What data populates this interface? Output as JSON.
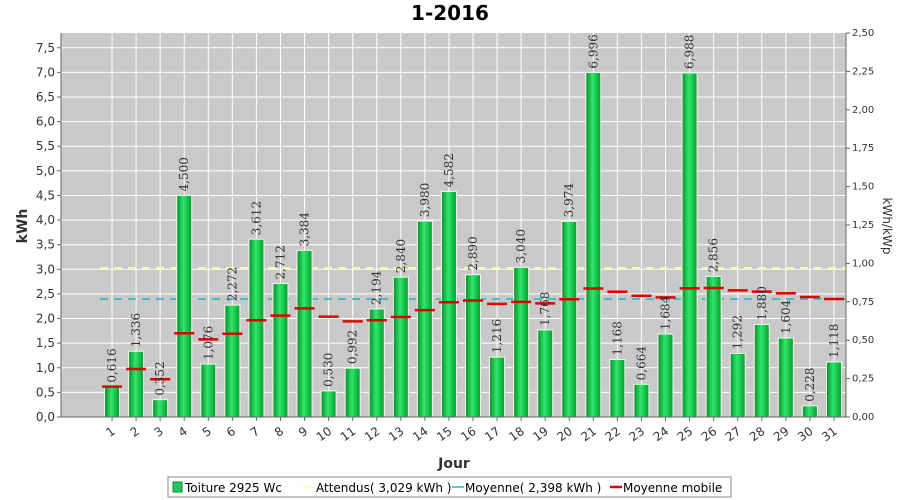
{
  "chart_data": {
    "type": "bar",
    "title": "1-2016",
    "xlabel": "Jour",
    "ylabel": "kWh",
    "y2label": "kWh/kWp",
    "ylim": [
      0,
      7.8
    ],
    "y2lim": [
      0,
      2.5
    ],
    "yticks": [
      "0,0",
      "0,5",
      "1,0",
      "1,5",
      "2,0",
      "2,5",
      "3,0",
      "3,5",
      "4,0",
      "4,5",
      "5,0",
      "5,5",
      "6,0",
      "6,5",
      "7,0",
      "7,5"
    ],
    "y2ticks": [
      "0,00",
      "0,25",
      "0,50",
      "0,75",
      "1,00",
      "1,25",
      "1,50",
      "1,75",
      "2,00",
      "2,25",
      "2,50"
    ],
    "grid": true,
    "categories": [
      "1",
      "2",
      "3",
      "4",
      "5",
      "6",
      "7",
      "8",
      "9",
      "10",
      "11",
      "12",
      "13",
      "14",
      "15",
      "16",
      "17",
      "18",
      "19",
      "20",
      "21",
      "22",
      "23",
      "24",
      "25",
      "26",
      "27",
      "28",
      "29",
      "30",
      "31"
    ],
    "series": [
      {
        "name": "Toiture 2925 Wc",
        "type": "bar",
        "color": "#22c55e",
        "values": [
          0.616,
          1.336,
          0.352,
          4.5,
          1.076,
          2.272,
          3.612,
          2.712,
          3.384,
          0.53,
          0.992,
          2.194,
          2.84,
          3.98,
          4.582,
          2.89,
          1.216,
          3.04,
          1.768,
          3.974,
          6.996,
          1.168,
          0.664,
          1.684,
          6.988,
          2.856,
          1.292,
          1.88,
          1.604,
          0.228,
          1.118
        ],
        "labels": [
          "0,616",
          "1,336",
          "0,352",
          "4,500",
          "1,076",
          "2,272",
          "3,612",
          "2,712",
          "3,384",
          "0,530",
          "0,992",
          "2,194",
          "2,840",
          "3,980",
          "4,582",
          "2,890",
          "1,216",
          "3,040",
          "1,768",
          "3,974",
          "6,996",
          "1,168",
          "0,664",
          "1,684",
          "6,988",
          "2,856",
          "1,292",
          "1,880",
          "1,604",
          "0,228",
          "1,118"
        ]
      },
      {
        "name": "Attendus( 3,029 kWh )",
        "type": "reference",
        "color": "#ffff99",
        "value": 3.029
      },
      {
        "name": "Moyenne( 2,398 kWh )",
        "type": "reference",
        "color": "#22b5c8",
        "value": 2.398
      },
      {
        "name": "Moyenne mobile",
        "type": "step",
        "color": "#e00000",
        "values": [
          0.616,
          0.976,
          0.768,
          1.701,
          1.576,
          1.692,
          1.966,
          2.059,
          2.206,
          2.038,
          1.943,
          1.964,
          2.031,
          2.17,
          2.331,
          2.366,
          2.298,
          2.339,
          2.308,
          2.391,
          2.61,
          2.544,
          2.462,
          2.43,
          2.612,
          2.621,
          2.572,
          2.547,
          2.514,
          2.438,
          2.396
        ]
      }
    ],
    "legend": {
      "placement": "bottom-center"
    }
  }
}
